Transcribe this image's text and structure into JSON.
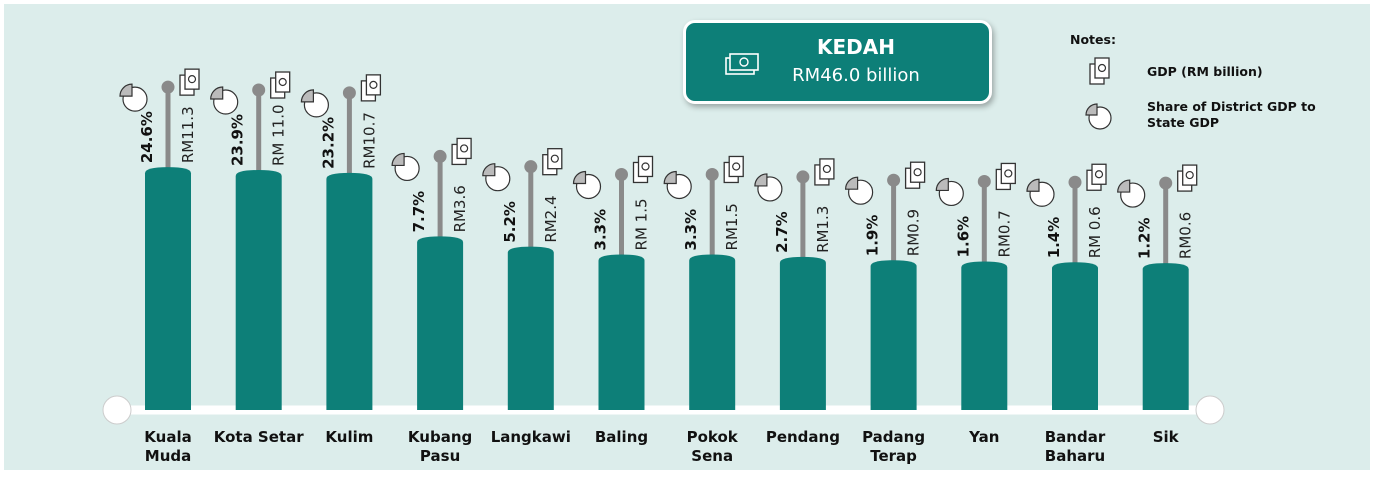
{
  "chart_data": {
    "type": "bar",
    "total": {
      "title": "KEDAH",
      "value_label": "RM46.0 billion"
    },
    "legend_title": "Notes:",
    "categories": [
      "Kuala Muda",
      "Kota Setar",
      "Kulim",
      "Kubang Pasu",
      "Langkawi",
      "Baling",
      "Pokok Sena",
      "Pendang",
      "Padang Terap",
      "Yan",
      "Bandar Baharu",
      "Sik"
    ],
    "series": [
      {
        "name": "Share of District GDP to State GDP",
        "color": "#0d7f78",
        "values": [
          24.6,
          23.9,
          23.2,
          7.7,
          5.2,
          3.3,
          3.3,
          2.7,
          1.9,
          1.6,
          1.4,
          1.2
        ],
        "value_labels": [
          "24.6%",
          "23.9%",
          "23.2%",
          "7.7%",
          "5.2%",
          "3.3%",
          "3.3%",
          "2.7%",
          "1.9%",
          "1.6%",
          "1.4%",
          "1.2%"
        ]
      },
      {
        "name": "GDP (RM billion)",
        "color": "#8a8a8a",
        "values": [
          11.3,
          11.0,
          10.7,
          3.6,
          2.4,
          1.5,
          1.5,
          1.3,
          0.9,
          0.7,
          0.6,
          0.6
        ],
        "value_labels": [
          "RM11.3",
          "RM 11.0",
          "RM10.7",
          "RM3.6",
          "RM2.4",
          "RM 1.5",
          "RM1.5",
          "RM1.3",
          "RM0.9",
          "RM0.7",
          "RM 0.6",
          "RM0.6"
        ]
      }
    ]
  }
}
